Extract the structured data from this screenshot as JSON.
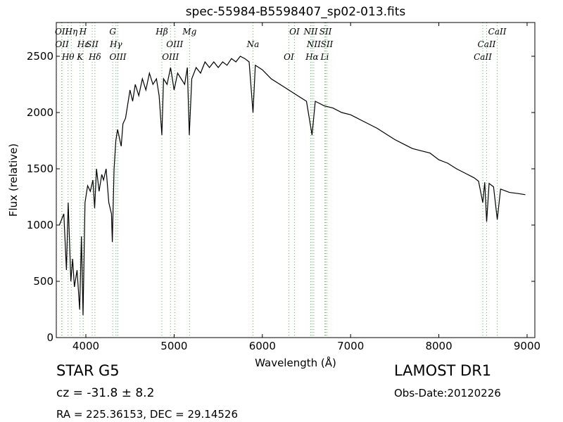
{
  "chart_data": {
    "type": "line",
    "title": "spec-55984-B5598407_sp02-013.fits",
    "x_label": "Wavelength (Å)",
    "y_label": "Flux (relative)",
    "color": "#000000",
    "line_color": "#5cb85c",
    "xlim": [
      3665,
      9088
    ],
    "ylim": [
      0,
      2800
    ],
    "xticks": [
      4000,
      5000,
      6000,
      7000,
      8000,
      9000
    ],
    "yticks": [
      0,
      500,
      1000,
      1500,
      2000,
      2500
    ],
    "x": [
      3700,
      3750,
      3780,
      3800,
      3830,
      3850,
      3870,
      3900,
      3930,
      3950,
      3968,
      3990,
      4020,
      4050,
      4080,
      4100,
      4120,
      4150,
      4180,
      4200,
      4230,
      4260,
      4290,
      4300,
      4320,
      4340,
      4360,
      4400,
      4420,
      4450,
      4480,
      4500,
      4530,
      4560,
      4600,
      4640,
      4680,
      4720,
      4760,
      4800,
      4830,
      4861,
      4880,
      4920,
      4960,
      5000,
      5040,
      5080,
      5120,
      5150,
      5172,
      5200,
      5250,
      5300,
      5350,
      5400,
      5450,
      5500,
      5550,
      5600,
      5650,
      5700,
      5750,
      5800,
      5850,
      5894,
      5920,
      6000,
      6100,
      6200,
      6300,
      6400,
      6500,
      6563,
      6600,
      6700,
      6800,
      6900,
      7000,
      7100,
      7200,
      7300,
      7400,
      7500,
      7600,
      7700,
      7800,
      7900,
      8000,
      8100,
      8200,
      8300,
      8400,
      8450,
      8498,
      8520,
      8542,
      8570,
      8620,
      8662,
      8700,
      8800,
      8900,
      8980
    ],
    "values": [
      1000,
      1100,
      600,
      1200,
      500,
      700,
      450,
      600,
      250,
      900,
      200,
      1200,
      1350,
      1300,
      1400,
      1150,
      1500,
      1300,
      1450,
      1400,
      1500,
      1200,
      1100,
      850,
      1500,
      1750,
      1850,
      1700,
      1900,
      1950,
      2100,
      2200,
      2100,
      2250,
      2150,
      2300,
      2200,
      2350,
      2250,
      2300,
      2150,
      1800,
      2300,
      2250,
      2400,
      2200,
      2350,
      2300,
      2250,
      2400,
      1800,
      2300,
      2400,
      2350,
      2450,
      2400,
      2450,
      2400,
      2450,
      2420,
      2480,
      2450,
      2500,
      2480,
      2450,
      2000,
      2420,
      2380,
      2300,
      2250,
      2200,
      2150,
      2100,
      1800,
      2100,
      2060,
      2040,
      2000,
      1980,
      1940,
      1900,
      1860,
      1810,
      1760,
      1720,
      1680,
      1660,
      1640,
      1580,
      1550,
      1500,
      1460,
      1420,
      1390,
      1200,
      1380,
      1030,
      1370,
      1340,
      1050,
      1320,
      1290,
      1280,
      1270
    ],
    "lines": [
      {
        "wavelength": 3726,
        "label": "OII"
      },
      {
        "wavelength": 3729,
        "label": "OII"
      },
      {
        "wavelength": 3798,
        "label": "Hθ"
      },
      {
        "wavelength": 3835,
        "label": "Hη"
      },
      {
        "wavelength": 3970,
        "label": "Hε"
      },
      {
        "wavelength": 3934,
        "label": "K"
      },
      {
        "wavelength": 3968,
        "label": "H"
      },
      {
        "wavelength": 4072,
        "label": "SII"
      },
      {
        "wavelength": 4102,
        "label": "Hδ"
      },
      {
        "wavelength": 4304,
        "label": "G"
      },
      {
        "wavelength": 4341,
        "label": "Hγ"
      },
      {
        "wavelength": 4363,
        "label": "OIII"
      },
      {
        "wavelength": 4861,
        "label": "Hβ"
      },
      {
        "wavelength": 5007,
        "label": "OIII"
      },
      {
        "wavelength": 4959,
        "label": "OIII"
      },
      {
        "wavelength": 5175,
        "label": "Mg"
      },
      {
        "wavelength": 5894,
        "label": "Na"
      },
      {
        "wavelength": 6300,
        "label": "OI"
      },
      {
        "wavelength": 6364,
        "label": "OI"
      },
      {
        "wavelength": 6583,
        "label": "NII"
      },
      {
        "wavelength": 6563,
        "label": "Hα"
      },
      {
        "wavelength": 6548,
        "label": "NII"
      },
      {
        "wavelength": 6731,
        "label": "SII"
      },
      {
        "wavelength": 6707,
        "label": "Li"
      },
      {
        "wavelength": 6716,
        "label": "SII"
      },
      {
        "wavelength": 8542,
        "label": "CaII"
      },
      {
        "wavelength": 8498,
        "label": "CaII"
      },
      {
        "wavelength": 8662,
        "label": "CaII"
      }
    ],
    "annotations": [
      "STAR",
      "G5",
      "cz = -31.8 ± 8.2",
      "RA = 225.36153, DEC = 29.14526",
      "LAMOST DR1",
      "Obs-Date:20120226"
    ]
  }
}
